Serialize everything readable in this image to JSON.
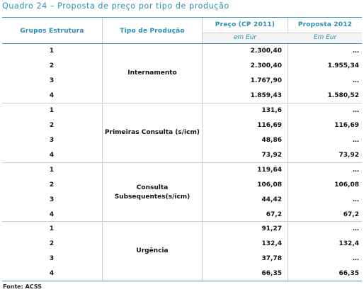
{
  "caption": "Quadro 24 – Proposta de preço por tipo de produção",
  "headers": {
    "grupos": "Grupos Estrutura",
    "tipo": "Tipo de Produção",
    "preco": "Preço (CP 2011)",
    "proposta": "Proposta 2012",
    "preco_unit": "em Eur",
    "proposta_unit": "Em Eur"
  },
  "sections": [
    {
      "type_lines": [
        "Internamento"
      ],
      "rows": [
        {
          "group": "1",
          "price": "2.300,40",
          "proposal": "…"
        },
        {
          "group": "2",
          "price": "2.300,40",
          "proposal": "1.955,34"
        },
        {
          "group": "3",
          "price": "1.767,90",
          "proposal": "…"
        },
        {
          "group": "4",
          "price": "1.859,43",
          "proposal": "1.580,52"
        }
      ]
    },
    {
      "type_lines": [
        "Primeiras Consulta (s/icm)"
      ],
      "rows": [
        {
          "group": "1",
          "price": "131,6",
          "proposal": "…"
        },
        {
          "group": "2",
          "price": "116,69",
          "proposal": "116,69"
        },
        {
          "group": "3",
          "price": "48,86",
          "proposal": "…"
        },
        {
          "group": "4",
          "price": "73,92",
          "proposal": "73,92"
        }
      ]
    },
    {
      "type_lines": [
        "Consulta",
        "Subsequentes(s/icm)"
      ],
      "rows": [
        {
          "group": "1",
          "price": "119,64",
          "proposal": "…"
        },
        {
          "group": "2",
          "price": "106,08",
          "proposal": "106,08"
        },
        {
          "group": "3",
          "price": "44,42",
          "proposal": "…"
        },
        {
          "group": "4",
          "price": "67,2",
          "proposal": "67,2"
        }
      ]
    },
    {
      "type_lines": [
        "Urgência"
      ],
      "rows": [
        {
          "group": "1",
          "price": "91,27",
          "proposal": "…"
        },
        {
          "group": "2",
          "price": "132,4",
          "proposal": "132,4"
        },
        {
          "group": "3",
          "price": "37,78",
          "proposal": "…"
        },
        {
          "group": "4",
          "price": "66,35",
          "proposal": "66,35"
        }
      ]
    }
  ],
  "source": "Fonte: ACSS"
}
